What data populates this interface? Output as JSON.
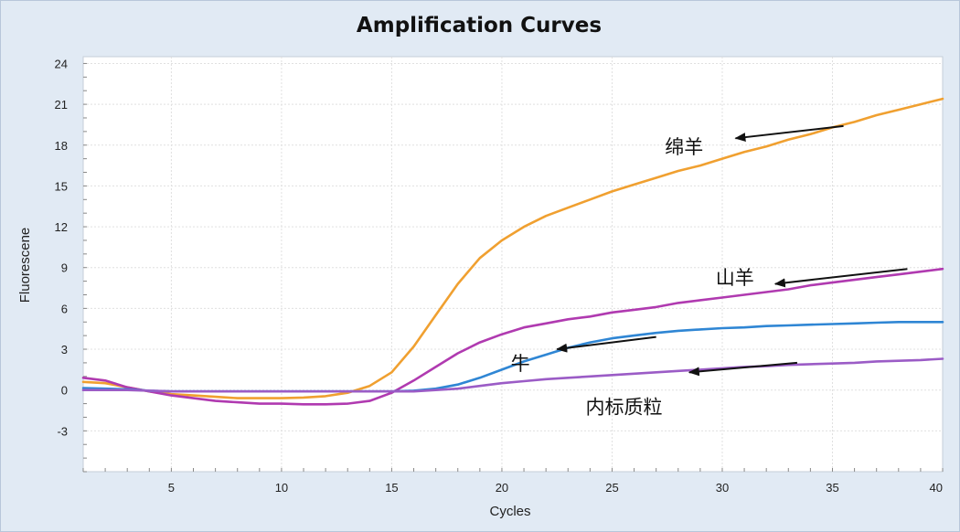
{
  "chart_data": {
    "type": "line",
    "title": "Amplification Curves",
    "xlabel": "Cycles",
    "ylabel": "Fluorescene",
    "xlim": [
      1,
      40
    ],
    "ylim": [
      -6,
      24.5
    ],
    "xticks": [
      5,
      10,
      15,
      20,
      25,
      30,
      35,
      40
    ],
    "yticks": [
      -3,
      0,
      3,
      6,
      9,
      12,
      15,
      18,
      21,
      24
    ],
    "grid": true,
    "x": [
      1,
      2,
      3,
      4,
      5,
      6,
      7,
      8,
      9,
      10,
      11,
      12,
      13,
      14,
      15,
      16,
      17,
      18,
      19,
      20,
      21,
      22,
      23,
      24,
      25,
      26,
      27,
      28,
      29,
      30,
      31,
      32,
      33,
      34,
      35,
      36,
      37,
      38,
      39,
      40
    ],
    "series": [
      {
        "color": "#f0a030",
        "values": [
          0.6,
          0.5,
          0.2,
          -0.1,
          -0.3,
          -0.4,
          -0.5,
          -0.6,
          -0.6,
          -0.6,
          -0.55,
          -0.45,
          -0.2,
          0.3,
          1.3,
          3.2,
          5.5,
          7.8,
          9.7,
          11.0,
          12.0,
          12.8,
          13.4,
          14.0,
          14.6,
          15.1,
          15.6,
          16.1,
          16.5,
          17.0,
          17.5,
          17.9,
          18.4,
          18.8,
          19.3,
          19.7,
          20.2,
          20.6,
          21.0,
          21.4
        ]
      },
      {
        "color": "#b03ab0",
        "values": [
          0.9,
          0.7,
          0.2,
          -0.1,
          -0.4,
          -0.6,
          -0.8,
          -0.9,
          -1.0,
          -1.0,
          -1.05,
          -1.05,
          -1.0,
          -0.8,
          -0.2,
          0.7,
          1.7,
          2.7,
          3.5,
          4.1,
          4.6,
          4.9,
          5.2,
          5.4,
          5.7,
          5.9,
          6.1,
          6.4,
          6.6,
          6.8,
          7.0,
          7.2,
          7.4,
          7.7,
          7.9,
          8.1,
          8.3,
          8.5,
          8.7,
          8.9
        ]
      },
      {
        "color": "#2f86d4",
        "values": [
          0.15,
          0.1,
          0.05,
          -0.05,
          -0.1,
          -0.1,
          -0.1,
          -0.1,
          -0.1,
          -0.1,
          -0.1,
          -0.1,
          -0.1,
          -0.1,
          -0.1,
          -0.05,
          0.1,
          0.4,
          0.9,
          1.5,
          2.1,
          2.6,
          3.1,
          3.5,
          3.8,
          4.0,
          4.2,
          4.35,
          4.45,
          4.55,
          4.6,
          4.7,
          4.75,
          4.8,
          4.85,
          4.9,
          4.95,
          5.0,
          5.0,
          5.0
        ]
      },
      {
        "color": "#9b5cc6",
        "values": [
          0.0,
          0.0,
          0.0,
          -0.05,
          -0.1,
          -0.1,
          -0.1,
          -0.1,
          -0.1,
          -0.1,
          -0.1,
          -0.1,
          -0.1,
          -0.1,
          -0.1,
          -0.1,
          0.0,
          0.1,
          0.3,
          0.5,
          0.65,
          0.8,
          0.9,
          1.0,
          1.1,
          1.2,
          1.3,
          1.4,
          1.5,
          1.6,
          1.7,
          1.75,
          1.85,
          1.9,
          1.95,
          2.0,
          2.1,
          2.15,
          2.2,
          2.3
        ]
      }
    ],
    "annotations": [
      {
        "text": "绵羊",
        "x": 27.4,
        "y": 17.9,
        "arrow_from": [
          35.5,
          19.4
        ],
        "arrow_to": [
          30.6,
          18.5
        ]
      },
      {
        "text": "山羊",
        "x": 29.7,
        "y": 8.3,
        "arrow_from": [
          38.4,
          8.9
        ],
        "arrow_to": [
          32.4,
          7.8
        ]
      },
      {
        "text": "牛",
        "x": 20.4,
        "y": 2.0,
        "arrow_from": [
          27.0,
          3.9
        ],
        "arrow_to": [
          22.5,
          3.0
        ]
      },
      {
        "text": "内标质粒",
        "x": 23.8,
        "y": -1.2,
        "arrow_from": [
          33.4,
          2.0
        ],
        "arrow_to": [
          28.5,
          1.3
        ]
      }
    ]
  }
}
